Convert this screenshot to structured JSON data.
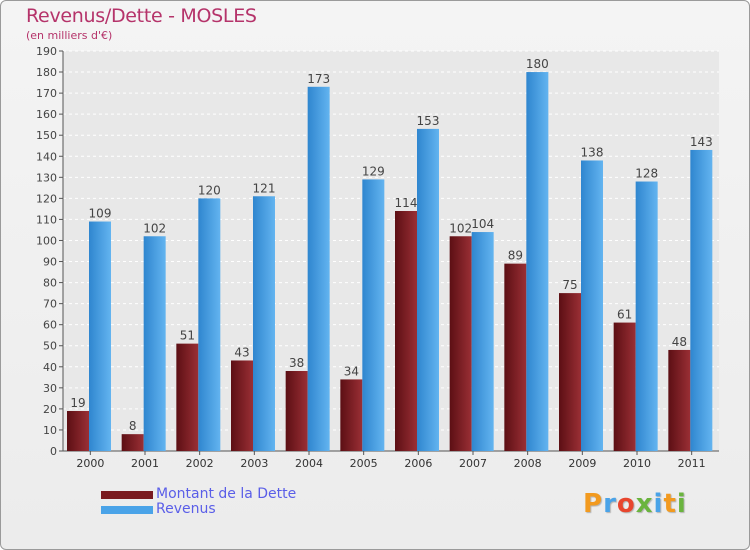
{
  "chart_data": {
    "type": "bar",
    "title": "Revenus/Dette - MOSLES",
    "subtitle": "(en milliers d'€)",
    "categories": [
      "2000",
      "2001",
      "2002",
      "2003",
      "2004",
      "2005",
      "2006",
      "2007",
      "2008",
      "2009",
      "2010",
      "2011"
    ],
    "series": [
      {
        "name": "Montant de la Dette",
        "color": "#7a1a1f",
        "values": [
          19,
          8,
          51,
          43,
          38,
          34,
          114,
          102,
          89,
          75,
          61,
          48
        ]
      },
      {
        "name": "Revenus",
        "color": "#4aa3e8",
        "values": [
          109,
          102,
          120,
          121,
          173,
          129,
          153,
          104,
          180,
          138,
          128,
          143
        ]
      }
    ],
    "ylim": [
      0,
      190
    ],
    "ytick_step": 10,
    "grid": true,
    "legend_position": "bottom-left"
  },
  "brand": {
    "letters": [
      "P",
      "r",
      "o",
      "x",
      "i",
      "t",
      "i"
    ],
    "colors": [
      "#f29a1f",
      "#4aa3e8",
      "#e8462e",
      "#6ab43e",
      "#4aa3e8",
      "#f29a1f",
      "#6ab43e"
    ]
  }
}
